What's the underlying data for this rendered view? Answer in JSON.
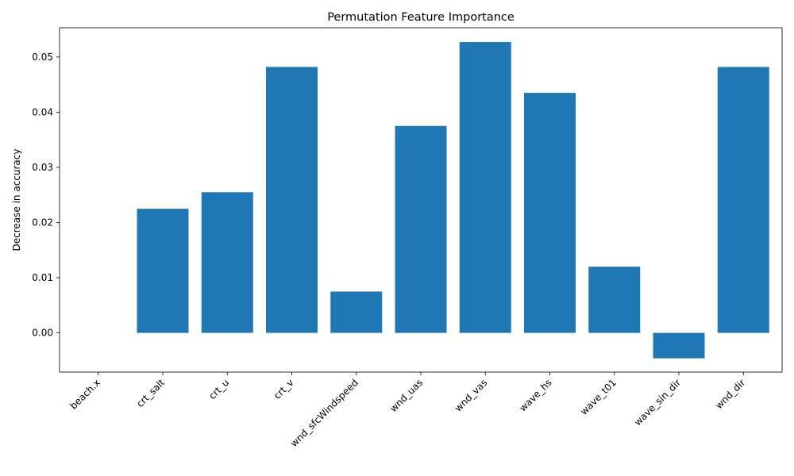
{
  "chart_data": {
    "type": "bar",
    "title": "Permutation Feature Importance",
    "xlabel": "",
    "ylabel": "Decrease in accuracy",
    "categories": [
      "beach.x",
      "crt_salt",
      "crt_u",
      "crt_v",
      "wnd_sfcWindspeed",
      "wnd_uas",
      "wnd_vas",
      "wave_hs",
      "wave_t01",
      "wave_sin_dir",
      "wnd_dir"
    ],
    "values": [
      0.0,
      0.0225,
      0.0255,
      0.0482,
      0.0075,
      0.0375,
      0.0527,
      0.0435,
      0.012,
      -0.0046,
      0.0482
    ],
    "ylim": [
      -0.0071,
      0.0553
    ],
    "yticks": [
      0.0,
      0.01,
      0.02,
      0.03,
      0.04,
      0.05
    ],
    "ytick_labels": [
      "0.00",
      "0.01",
      "0.02",
      "0.03",
      "0.04",
      "0.05"
    ],
    "bar_color": "#1f77b4",
    "grid": false,
    "legend": false
  }
}
